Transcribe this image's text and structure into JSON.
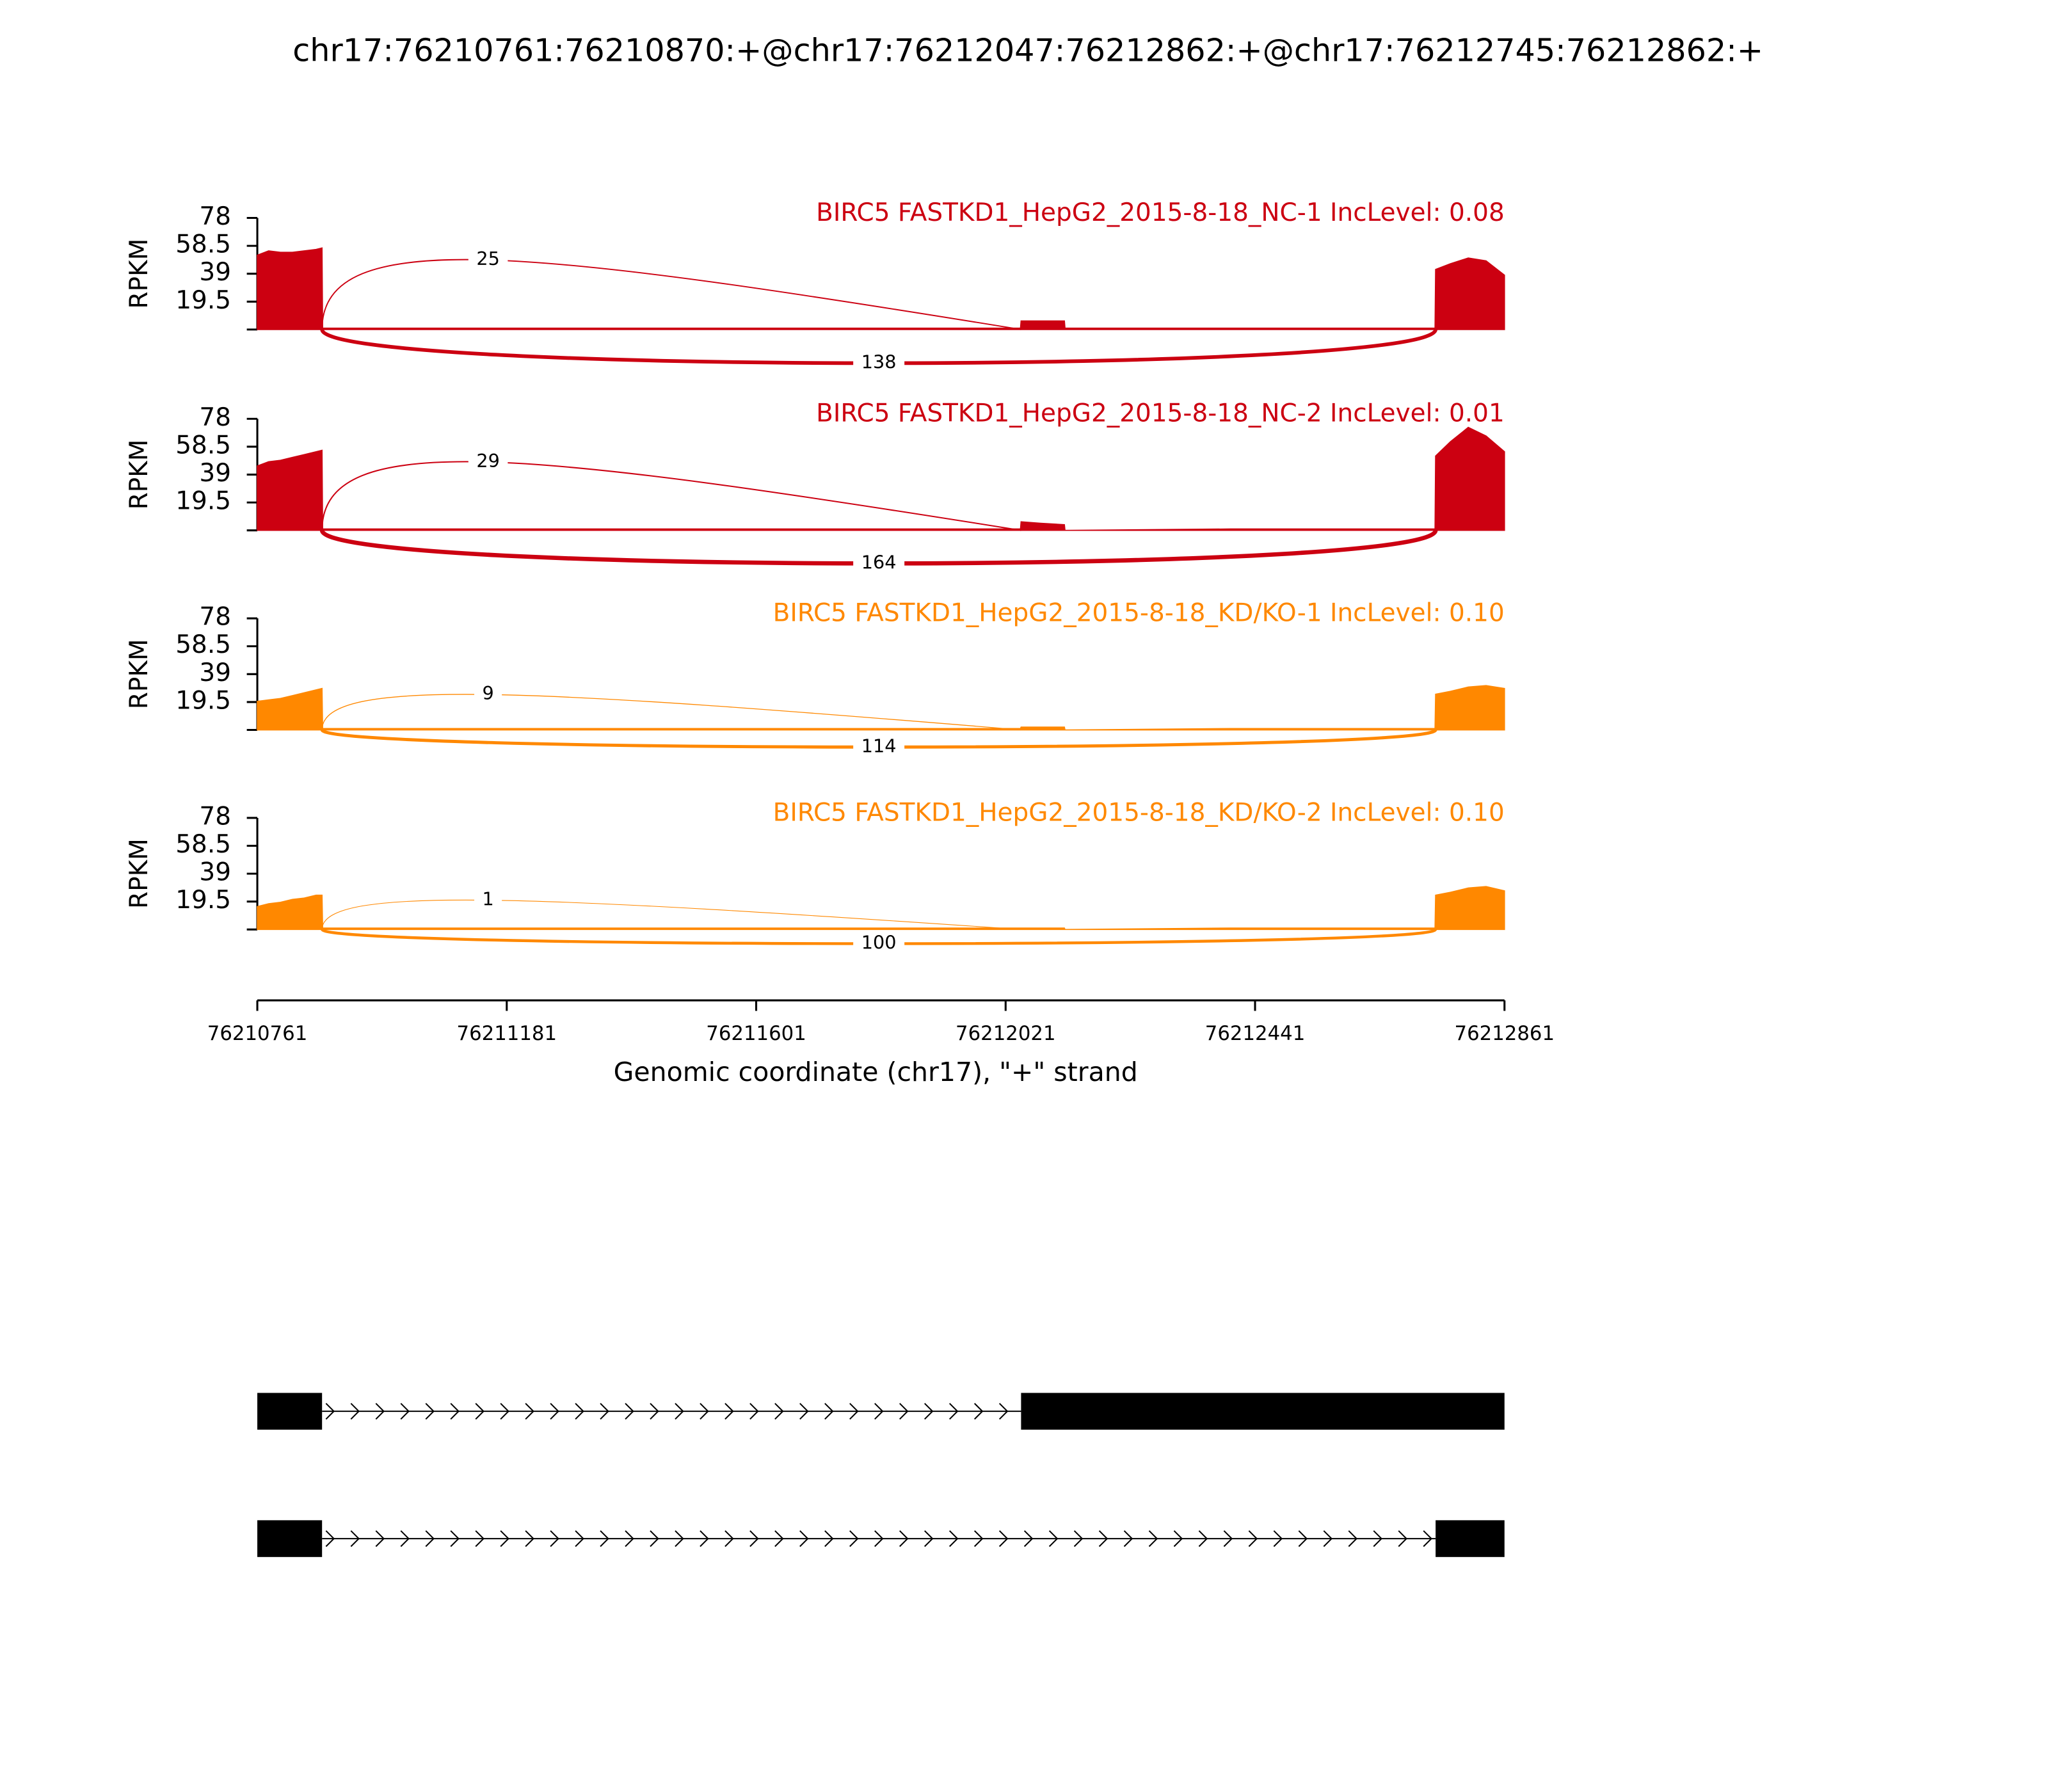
{
  "chart_data": {
    "type": "sashimi",
    "title": "chr17:76210761:76210870:+@chr17:76212047:76212862:+@chr17:76212745:76212862:+",
    "xlabel": "Genomic coordinate (chr17), \"+\" strand",
    "xlim": [
      76210761,
      76212861
    ],
    "xticks": [
      76210761,
      76211181,
      76211601,
      76212021,
      76212441,
      76212861
    ],
    "ylabel": "RPKM",
    "ylim": [
      0,
      78
    ],
    "yticks": [
      19.5,
      39,
      58.5,
      78
    ],
    "x": [
      76210761,
      76210780,
      76210800,
      76210820,
      76210840,
      76210860,
      76210870,
      76210871,
      76211500,
      76212046,
      76212047,
      76212080,
      76212120,
      76212121,
      76212400,
      76212744,
      76212745,
      76212770,
      76212800,
      76212830,
      76212861
    ],
    "tracks": [
      {
        "name": "BIRC5 FASTKD1_HepG2_2015-8-18_NC-1 IncLevel: 0.08",
        "color": "#cc0011",
        "values": [
          52,
          55,
          54,
          54,
          55,
          56,
          57,
          1,
          1,
          1,
          6,
          6,
          6,
          1,
          1,
          1,
          42,
          46,
          50,
          48,
          38
        ],
        "junctions": [
          {
            "start": 76210870,
            "end": 76212047,
            "count": 25,
            "side": "top"
          },
          {
            "start": 76210870,
            "end": 76212745,
            "count": 138,
            "side": "bottom"
          }
        ]
      },
      {
        "name": "BIRC5 FASTKD1_HepG2_2015-8-18_NC-2 IncLevel: 0.01",
        "color": "#cc0011",
        "values": [
          45,
          48,
          49,
          51,
          53,
          55,
          56,
          1,
          1,
          1,
          6,
          5,
          4,
          0,
          1,
          1,
          52,
          62,
          72,
          66,
          55
        ],
        "junctions": [
          {
            "start": 76210870,
            "end": 76212047,
            "count": 29,
            "side": "top"
          },
          {
            "start": 76210870,
            "end": 76212745,
            "count": 164,
            "side": "bottom"
          }
        ]
      },
      {
        "name": "BIRC5 FASTKD1_HepG2_2015-8-18_KD/KO-1 IncLevel: 0.10",
        "color": "#ff8800",
        "values": [
          20,
          21,
          22,
          24,
          26,
          28,
          29,
          1,
          1,
          1,
          2,
          2,
          2,
          0,
          1,
          1,
          25,
          27,
          30,
          31,
          29
        ],
        "junctions": [
          {
            "start": 76210870,
            "end": 76212047,
            "count": 9,
            "side": "top"
          },
          {
            "start": 76210870,
            "end": 76212745,
            "count": 114,
            "side": "bottom"
          }
        ]
      },
      {
        "name": "BIRC5 FASTKD1_HepG2_2015-8-18_KD/KO-2 IncLevel: 0.10",
        "color": "#ff8800",
        "values": [
          16,
          18,
          19,
          21,
          22,
          24,
          24,
          1,
          1,
          1,
          1,
          1,
          1,
          0,
          1,
          1,
          24,
          26,
          29,
          30,
          27
        ],
        "junctions": [
          {
            "start": 76210870,
            "end": 76212047,
            "count": 1,
            "side": "top"
          },
          {
            "start": 76210870,
            "end": 76212745,
            "count": 100,
            "side": "bottom"
          }
        ]
      }
    ],
    "transcripts": [
      {
        "exons": [
          [
            76210761,
            76210870
          ],
          [
            76212047,
            76212861
          ]
        ]
      },
      {
        "exons": [
          [
            76210761,
            76210870
          ],
          [
            76212745,
            76212861
          ]
        ]
      }
    ]
  }
}
